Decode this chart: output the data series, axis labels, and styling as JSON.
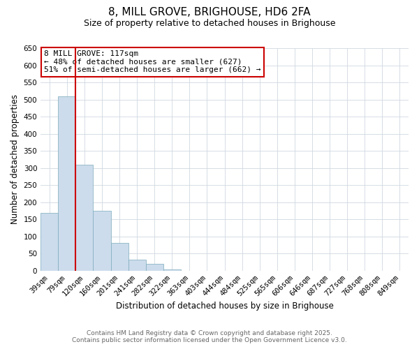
{
  "title": "8, MILL GROVE, BRIGHOUSE, HD6 2FA",
  "subtitle": "Size of property relative to detached houses in Brighouse",
  "xlabel": "Distribution of detached houses by size in Brighouse",
  "ylabel": "Number of detached properties",
  "bar_color": "#ccdcec",
  "bar_edge_color": "#7aaabb",
  "grid_color": "#d0d8e0",
  "background_color": "#ffffff",
  "categories": [
    "39sqm",
    "79sqm",
    "120sqm",
    "160sqm",
    "201sqm",
    "241sqm",
    "282sqm",
    "322sqm",
    "363sqm",
    "403sqm",
    "444sqm",
    "484sqm",
    "525sqm",
    "565sqm",
    "606sqm",
    "646sqm",
    "687sqm",
    "727sqm",
    "768sqm",
    "808sqm",
    "849sqm"
  ],
  "values": [
    170,
    510,
    310,
    175,
    82,
    33,
    21,
    4,
    1,
    0,
    0,
    0,
    0,
    0,
    0,
    0,
    0,
    0,
    0,
    0,
    1
  ],
  "ylim": [
    0,
    650
  ],
  "yticks": [
    0,
    50,
    100,
    150,
    200,
    250,
    300,
    350,
    400,
    450,
    500,
    550,
    600,
    650
  ],
  "vline_index": 1.5,
  "vline_color": "#cc0000",
  "annotation_title": "8 MILL GROVE: 117sqm",
  "annotation_line1": "← 48% of detached houses are smaller (627)",
  "annotation_line2": "51% of semi-detached houses are larger (662) →",
  "annotation_box_color": "#cc0000",
  "footer_line1": "Contains HM Land Registry data © Crown copyright and database right 2025.",
  "footer_line2": "Contains public sector information licensed under the Open Government Licence v3.0.",
  "title_fontsize": 11,
  "subtitle_fontsize": 9,
  "axis_label_fontsize": 8.5,
  "tick_fontsize": 7.5,
  "annotation_fontsize": 8,
  "footer_fontsize": 6.5
}
